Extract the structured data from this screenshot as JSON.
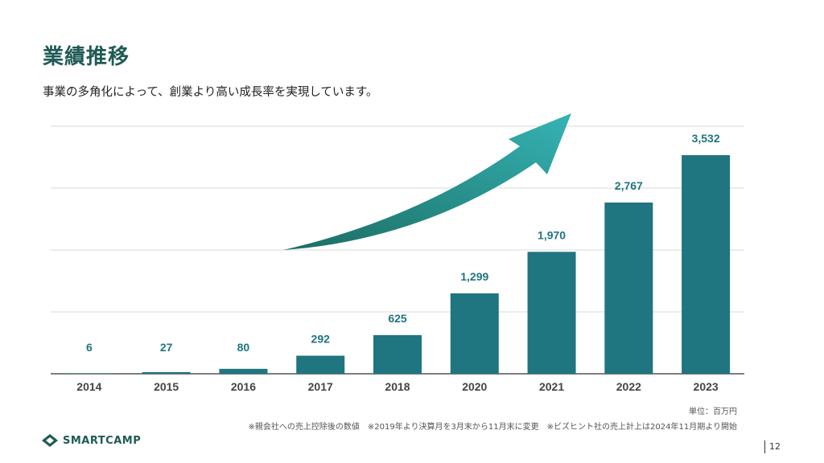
{
  "header": {
    "title": "業績推移",
    "subtitle": "事業の多角化によって、創業より高い成長率を実現しています。"
  },
  "colors": {
    "bar": "#1f7580",
    "accent": "#1f5b55",
    "arrow_start": "#1b6d62",
    "arrow_end": "#35b3b5"
  },
  "chart_data": {
    "type": "bar",
    "categories": [
      "2014",
      "2015",
      "2016",
      "2017",
      "2018",
      "2020",
      "2021",
      "2022",
      "2023"
    ],
    "values": [
      6,
      27,
      80,
      292,
      625,
      1299,
      1970,
      2767,
      3532
    ],
    "value_labels": [
      "6",
      "27",
      "80",
      "292",
      "625",
      "1,299",
      "1,970",
      "2,767",
      "3,532"
    ],
    "ylim": [
      0,
      4000
    ],
    "grid": true,
    "annotations": [
      "growth-arrow"
    ]
  },
  "notes": {
    "unit": "単位：百万円",
    "footnote": "※親会社への売上控除後の数値　※2019年より決算月を3月末から11月末に変更　※ビズヒント社の売上計上は2024年11月期より開始"
  },
  "logo": {
    "text": "SMARTCAMP"
  },
  "page": {
    "number": "12"
  }
}
